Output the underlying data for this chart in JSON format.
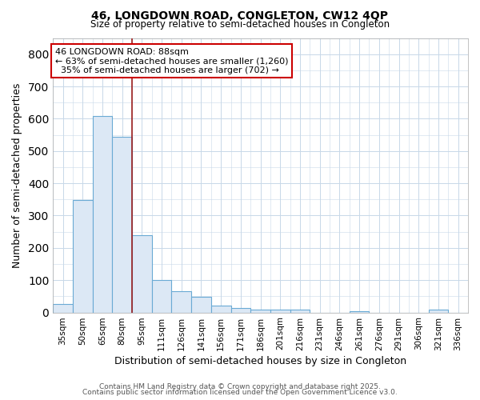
{
  "title_line1": "46, LONGDOWN ROAD, CONGLETON, CW12 4QP",
  "title_line2": "Size of property relative to semi-detached houses in Congleton",
  "xlabel": "Distribution of semi-detached houses by size in Congleton",
  "ylabel": "Number of semi-detached properties",
  "categories": [
    "35sqm",
    "50sqm",
    "65sqm",
    "80sqm",
    "95sqm",
    "111sqm",
    "126sqm",
    "141sqm",
    "156sqm",
    "171sqm",
    "186sqm",
    "201sqm",
    "216sqm",
    "231sqm",
    "246sqm",
    "261sqm",
    "276sqm",
    "291sqm",
    "306sqm",
    "321sqm",
    "336sqm"
  ],
  "values": [
    27,
    348,
    609,
    543,
    240,
    101,
    67,
    48,
    20,
    15,
    10,
    10,
    8,
    0,
    0,
    5,
    0,
    0,
    0,
    8,
    0
  ],
  "bar_color": "#dce8f5",
  "bar_edge_color": "#6aaad4",
  "vline_x": 3.5,
  "vline_color": "#9b1c1c",
  "annotation_line1": "46 LONGDOWN ROAD: 88sqm",
  "annotation_line2": "← 63% of semi-detached houses are smaller (1,260)",
  "annotation_line3": "  35% of semi-detached houses are larger (702) →",
  "box_color": "#ffffff",
  "box_edge_color": "#cc0000",
  "ylim": [
    0,
    850
  ],
  "yticks": [
    0,
    100,
    200,
    300,
    400,
    500,
    600,
    700,
    800
  ],
  "fig_bg_color": "#ffffff",
  "axes_bg_color": "#ffffff",
  "grid_color": "#c8d8e8",
  "footer_line1": "Contains HM Land Registry data © Crown copyright and database right 2025.",
  "footer_line2": "Contains public sector information licensed under the Open Government Licence v3.0."
}
